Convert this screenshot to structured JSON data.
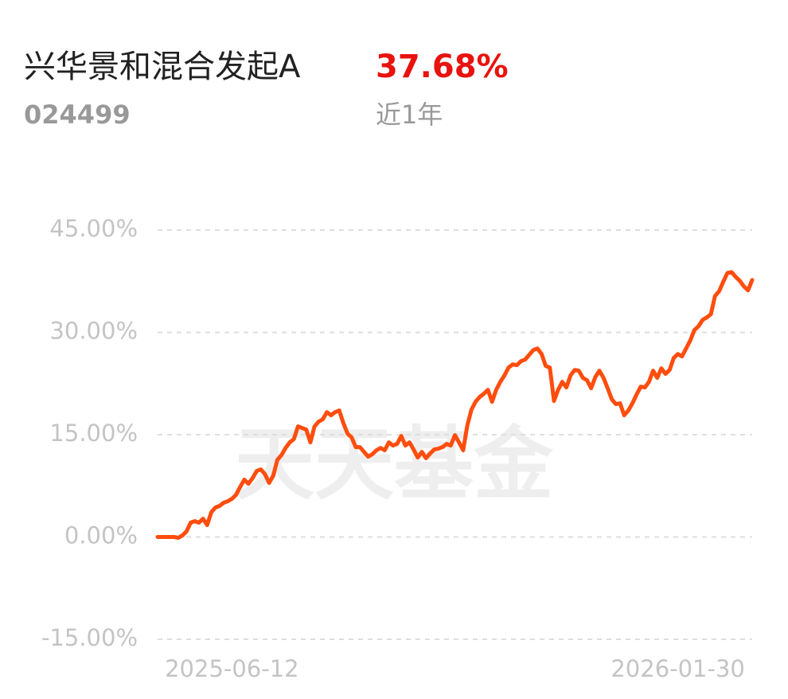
{
  "chart_data": {
    "type": "line",
    "title": "兴华景和混合发起A",
    "fund_code": "024499",
    "return_label": "37.68%",
    "period_label": "近1年",
    "watermark": "天天基金",
    "series": [
      {
        "name": "兴华景和混合发起A",
        "color": "#ff4d0e",
        "values": [
          0,
          0,
          0,
          0,
          0,
          -0.12,
          0.23,
          0.82,
          2.1,
          2.33,
          2.1,
          2.68,
          1.75,
          3.62,
          4.32,
          4.55,
          5.02,
          5.25,
          5.6,
          6.18,
          7.35,
          8.4,
          7.81,
          8.63,
          9.68,
          9.91,
          9.21,
          7.93,
          8.98,
          11.31,
          12.01,
          13.06,
          13.88,
          14.35,
          16.21,
          15.98,
          15.75,
          13.88,
          16.21,
          16.91,
          17.26,
          18.31,
          17.85,
          18.31,
          18.55,
          16.68,
          15.16,
          14.58,
          13.18,
          13.18,
          12.48,
          11.78,
          12.13,
          12.71,
          13.06,
          12.71,
          13.88,
          13.41,
          13.65,
          14.81,
          13.41,
          13.88,
          12.83,
          11.66,
          12.48,
          11.55,
          12.25,
          12.83,
          12.95,
          13.18,
          13.65,
          13.41,
          14.93,
          13.88,
          12.71,
          16.33,
          18.66,
          19.83,
          20.53,
          21.0,
          21.58,
          19.83,
          21.58,
          22.74,
          23.68,
          24.84,
          25.31,
          25.19,
          25.78,
          26.01,
          26.71,
          27.41,
          27.64,
          26.83,
          25.08,
          24.84,
          19.95,
          21.58,
          22.74,
          21.93,
          23.68,
          24.49,
          24.38,
          23.33,
          22.98,
          21.81,
          23.44,
          24.38,
          23.33,
          21.81,
          20.18,
          19.48,
          19.6,
          17.85,
          18.55,
          19.6,
          20.88,
          22.04,
          21.93,
          22.74,
          24.38,
          23.33,
          24.73,
          23.91,
          24.49,
          26.24,
          26.83,
          26.48,
          27.64,
          28.81,
          30.33,
          30.91,
          31.84,
          32.19,
          32.66,
          35.34,
          36.04,
          37.44,
          38.72,
          38.84,
          38.14,
          37.56,
          36.74,
          36.16,
          37.68
        ]
      }
    ],
    "xlim": [
      0,
      144
    ],
    "xticks": [
      {
        "value": 18,
        "label": "2025-06-12"
      },
      {
        "value": 126,
        "label": "2026-01-30"
      }
    ],
    "ylim": [
      -15,
      45
    ],
    "yticks": [
      {
        "value": -15,
        "label": "-15.00%"
      },
      {
        "value": 0,
        "label": "0.00%"
      },
      {
        "value": 15,
        "label": "15.00%"
      },
      {
        "value": 30,
        "label": "30.00%"
      },
      {
        "value": 45,
        "label": "45.00%"
      }
    ],
    "grid": true
  }
}
